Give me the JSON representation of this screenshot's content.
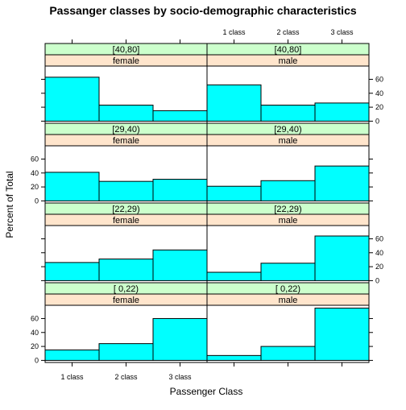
{
  "chart_data": {
    "type": "bar",
    "title": "Passanger classes by socio-demographic characteristics",
    "xlabel": "Passenger Class",
    "ylabel": "Percent of Total",
    "categories": [
      "1 class",
      "2 class",
      "3 class"
    ],
    "yticks": [
      "0",
      "20",
      "40",
      "60"
    ],
    "ylim": [
      -3,
      79
    ],
    "grid": false,
    "layout": "lattice 2 columns x 4 rows, age strip above sex strip in each panel",
    "colors": {
      "bar_fill": "#00ffff",
      "age_strip": "#ccffcc",
      "sex_strip": "#ffe5cc",
      "frame": "#000000"
    },
    "panels": [
      {
        "age": "[40,80]",
        "sex": "female",
        "values": [
          63,
          23,
          15
        ]
      },
      {
        "age": "[40,80]",
        "sex": "male",
        "values": [
          52,
          23,
          26
        ]
      },
      {
        "age": "[29,40)",
        "sex": "female",
        "values": [
          41,
          28,
          31
        ]
      },
      {
        "age": "[29,40)",
        "sex": "male",
        "values": [
          21,
          29,
          50
        ]
      },
      {
        "age": "[22,29)",
        "sex": "female",
        "values": [
          26,
          31,
          44
        ]
      },
      {
        "age": "[22,29)",
        "sex": "male",
        "values": [
          12,
          25,
          64
        ]
      },
      {
        "age": "[ 0,22)",
        "sex": "female",
        "values": [
          15,
          24,
          60
        ]
      },
      {
        "age": "[ 0,22)",
        "sex": "male",
        "values": [
          7,
          20,
          75
        ]
      }
    ]
  }
}
